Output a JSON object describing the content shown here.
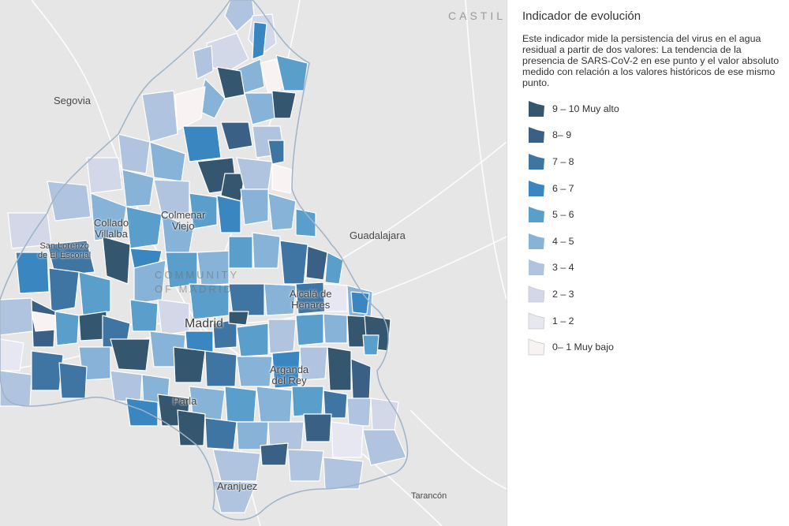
{
  "map": {
    "labels": {
      "segovia": "Segovia",
      "guadalajara": "Guadalajara",
      "collado_villalba": "Collado\nVillalba",
      "san_lorenzo": "San Lorenzo\nde El Escorial",
      "colmenar_viejo": "Colmenar\nViejo",
      "comunidad": "COMMUNITY\nOF MADRID",
      "madrid": "Madrid",
      "alcala": "Alcalá de\nHenares",
      "arganda": "Arganda\ndel Rey",
      "parla": "Parla",
      "aranjuez": "Aranjuez",
      "tarancon": "Tarancón",
      "castilla": "CASTIL\nLA MAN"
    }
  },
  "legend": {
    "title": "Indicador de evolución",
    "description": "Este indicador mide la persistencia del virus en el agua residual a partir de dos valores: La tendencia de la presencia de SARS-CoV-2 en ese punto y el valor absoluto medido con relación a los valores históricos de ese mismo punto.",
    "classes": [
      {
        "label": "9 – 10 Muy alto",
        "color": "#34566f"
      },
      {
        "label": "8– 9",
        "color": "#3a6185"
      },
      {
        "label": "7 – 8",
        "color": "#3f75a3"
      },
      {
        "label": "6 – 7",
        "color": "#3a86c0"
      },
      {
        "label": "5 – 6",
        "color": "#5a9fcc"
      },
      {
        "label": "4 – 5",
        "color": "#87b3d8"
      },
      {
        "label": "3 – 4",
        "color": "#b0c4df"
      },
      {
        "label": "2 – 3",
        "color": "#d3d8e9"
      },
      {
        "label": "1 – 2",
        "color": "#e6e7f0"
      },
      {
        "label": "0– 1 Muy bajo",
        "color": "#f9f2f3"
      }
    ]
  }
}
